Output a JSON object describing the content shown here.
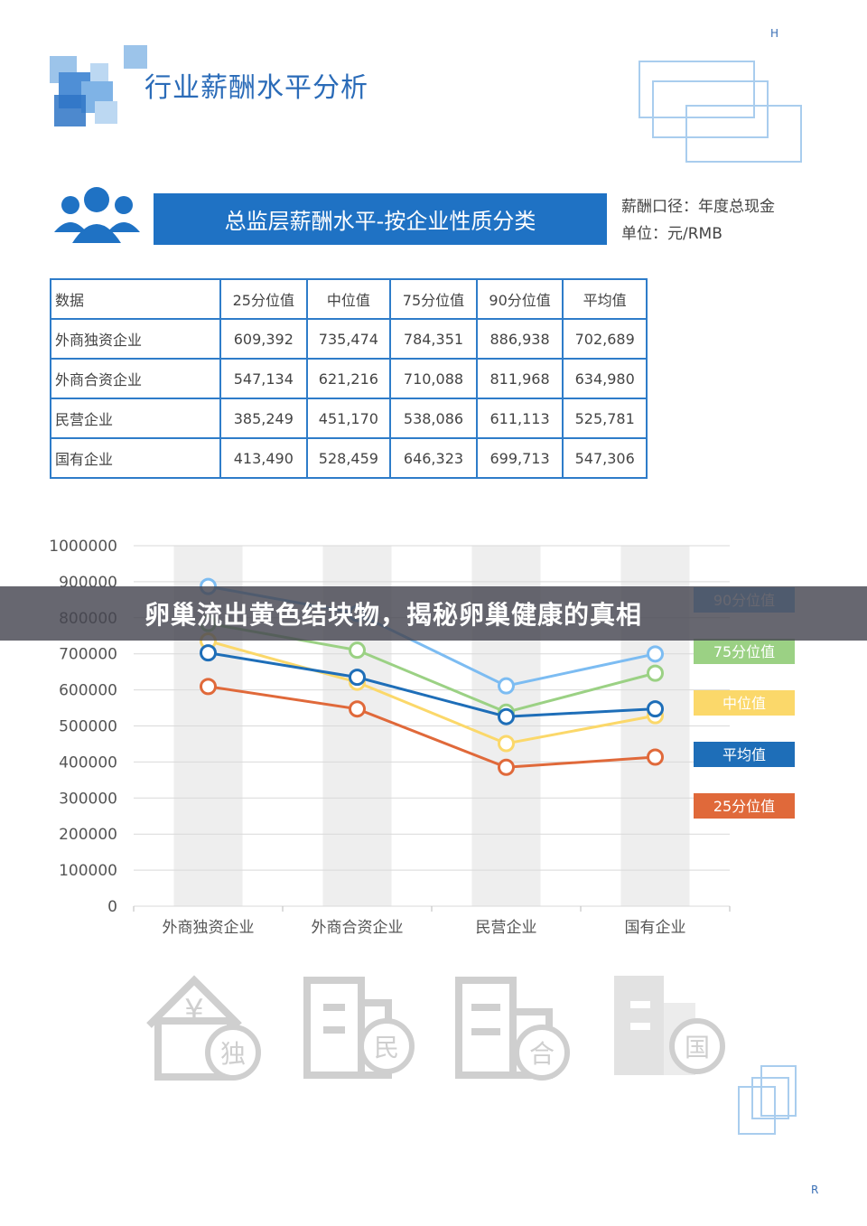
{
  "corner": {
    "top": "H",
    "bottom": "R"
  },
  "header": {
    "title": "行业薪酬水平分析"
  },
  "section": {
    "title": "总监层薪酬水平-按企业性质分类",
    "note_caliber": "薪酬口径：年度总现金",
    "note_unit": "单位：元/RMB"
  },
  "table": {
    "headers": [
      "数据",
      "25分位值",
      "中位值",
      "75分位值",
      "90分位值",
      "平均值"
    ],
    "rows": [
      [
        "外商独资企业",
        "609,392",
        "735,474",
        "784,351",
        "886,938",
        "702,689"
      ],
      [
        "外商合资企业",
        "547,134",
        "621,216",
        "710,088",
        "811,968",
        "634,980"
      ],
      [
        "民营企业",
        "385,249",
        "451,170",
        "538,086",
        "611,113",
        "525,781"
      ],
      [
        "国有企业",
        "413,490",
        "528,459",
        "646,323",
        "699,713",
        "547,306"
      ]
    ]
  },
  "chart_data": {
    "type": "line",
    "categories": [
      "外商独资企业",
      "外商合资企业",
      "民营企业",
      "国有企业"
    ],
    "ylim": [
      0,
      1000000
    ],
    "yticks": [
      0,
      100000,
      200000,
      300000,
      400000,
      500000,
      600000,
      700000,
      800000,
      900000,
      1000000
    ],
    "ytick_labels": [
      "0",
      "100000",
      "200000",
      "300000",
      "400000",
      "500000",
      "600000",
      "700000",
      "800000",
      "900000",
      "1000000"
    ],
    "legend_position": "right",
    "series": [
      {
        "name": "90分位值",
        "color": "#7cbcf2",
        "values": [
          886938,
          811968,
          611113,
          699713
        ]
      },
      {
        "name": "75分位值",
        "color": "#9bd184",
        "values": [
          784351,
          710088,
          538086,
          646323
        ]
      },
      {
        "name": "中位值",
        "color": "#fbd86a",
        "values": [
          735474,
          621216,
          451170,
          528459
        ]
      },
      {
        "name": "平均值",
        "color": "#1e6eb8",
        "values": [
          702689,
          634980,
          525781,
          547306
        ]
      },
      {
        "name": "25分位值",
        "color": "#e0693a",
        "values": [
          609392,
          547134,
          385249,
          413490
        ]
      }
    ]
  },
  "overlay": {
    "headline": "卵巢流出黄色结块物，揭秘卵巢健康的真相"
  },
  "icons": [
    {
      "name": "house-icon",
      "badge": "独"
    },
    {
      "name": "building-icon",
      "badge": "民"
    },
    {
      "name": "office-icon",
      "badge": "合"
    },
    {
      "name": "tower-icon",
      "badge": "国"
    }
  ]
}
